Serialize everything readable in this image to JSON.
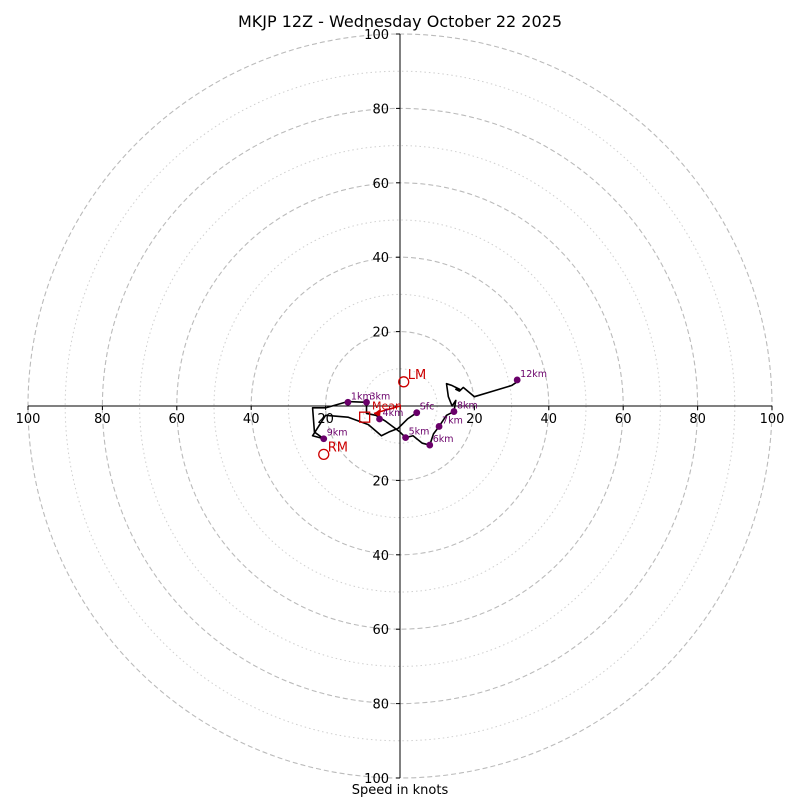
{
  "chart_data": {
    "type": "hodograph",
    "title": "MKJP 12Z - Wednesday October 22 2025",
    "xlabel": "Speed in knots",
    "unit": "knots",
    "range": [
      -100,
      100
    ],
    "rings_major": [
      20,
      40,
      60,
      80,
      100
    ],
    "rings_minor": [
      10,
      30,
      50,
      70,
      90
    ],
    "axis_tick_labels": [
      "100",
      "80",
      "60",
      "40",
      "20",
      "20",
      "40",
      "60",
      "80",
      "100"
    ],
    "axis_tick_values_x": [
      -100,
      -80,
      -60,
      -40,
      -20,
      20,
      40,
      60,
      80,
      100
    ],
    "axis_tick_labels_y": [
      "100",
      "80",
      "60",
      "40",
      "20",
      "20",
      "40",
      "60",
      "80",
      "100"
    ],
    "axis_tick_values_y": [
      100,
      80,
      60,
      40,
      20,
      -20,
      -40,
      -60,
      -80,
      -100
    ],
    "colors": {
      "trace": "#000000",
      "points": "#6a006a",
      "markers": "#cc0000",
      "grid": "#bbbbbb"
    },
    "wind_profile": [
      [
        4.5,
        -1.8
      ],
      [
        2,
        -3.5
      ],
      [
        -0.5,
        -6
      ],
      [
        -3,
        -7
      ],
      [
        -5,
        -8
      ],
      [
        -8.5,
        -5
      ],
      [
        -14,
        -3
      ],
      [
        -20,
        -2.5
      ],
      [
        -23.5,
        -8
      ],
      [
        -20.5,
        -8.8
      ],
      [
        -23,
        -7
      ],
      [
        -23.5,
        -0.5
      ],
      [
        -20,
        -0.5
      ],
      [
        -14,
        1.2
      ],
      [
        -9,
        1
      ],
      [
        -9,
        -2
      ],
      [
        -6.5,
        -2.5
      ],
      [
        -4,
        -4
      ],
      [
        0,
        -7
      ],
      [
        1.5,
        -8.5
      ],
      [
        3.5,
        -8
      ],
      [
        6,
        -10
      ],
      [
        8,
        -10.5
      ],
      [
        9,
        -7.5
      ],
      [
        10.5,
        -5.5
      ],
      [
        12.5,
        -2.5
      ],
      [
        14.5,
        -1.5
      ],
      [
        15,
        1.5
      ],
      [
        14,
        0
      ],
      [
        13,
        2.5
      ],
      [
        12.5,
        6
      ],
      [
        14,
        5.5
      ],
      [
        16,
        4.5
      ],
      [
        15,
        4.5
      ],
      [
        16,
        4
      ],
      [
        17,
        5
      ],
      [
        20,
        2.5
      ],
      [
        25,
        4
      ],
      [
        30,
        5.5
      ],
      [
        31.5,
        6.5
      ]
    ],
    "height_points": [
      {
        "label": "Sfc",
        "u": 4.5,
        "v": -1.8
      },
      {
        "label": "1km",
        "u": -14,
        "v": 1
      },
      {
        "label": "3km",
        "u": -9,
        "v": 1
      },
      {
        "label": "4km",
        "u": -5.5,
        "v": -3.5
      },
      {
        "label": "5km",
        "u": 1.5,
        "v": -8.5
      },
      {
        "label": "6km",
        "u": 8,
        "v": -10.5
      },
      {
        "label": "7km",
        "u": 10.5,
        "v": -5.5
      },
      {
        "label": "8km",
        "u": 14.5,
        "v": -1.5
      },
      {
        "label": "9km",
        "u": -20.5,
        "v": -8.8
      },
      {
        "label": "12km",
        "u": 31.5,
        "v": 7
      }
    ],
    "storm_motion": [
      {
        "label": "LM",
        "u": 1,
        "v": 6.5,
        "marker": "circle"
      },
      {
        "label": "RM",
        "u": -20.5,
        "v": -13,
        "marker": "circle"
      },
      {
        "label": "",
        "u": -9.5,
        "v": -3,
        "marker": "square"
      }
    ],
    "mean_wind_label": "Mean",
    "mean_wind": {
      "u": -7,
      "v": -2
    }
  }
}
